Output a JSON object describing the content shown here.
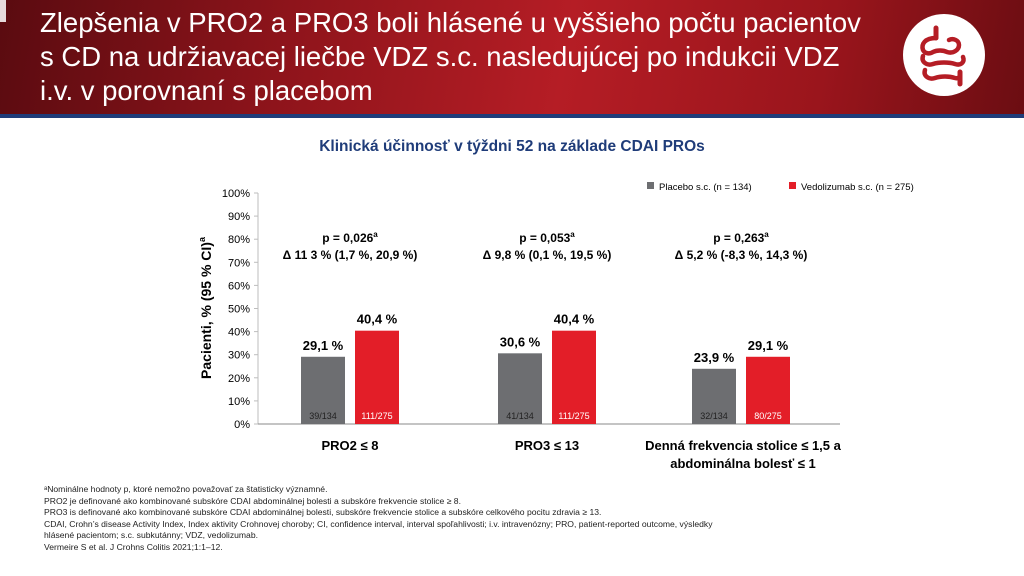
{
  "header": {
    "title": "Zlepšenia v PRO2 a PRO3 boli hlásené u vyššieho počtu pacientov s CD na udržiavacej liečbe VDZ s.c. nasledujúcej po indukcii VDZ i.v. v porovnaní s placebom",
    "logo_icon": "intestine-icon"
  },
  "colors": {
    "banner": "#9a151c",
    "placebo": "#6d6e71",
    "vedolizumab": "#e31e28",
    "navy": "#1f3c79"
  },
  "chart_data": {
    "type": "bar",
    "title": "Klinická účinnosť v týždni 52 na základe CDAI PROs",
    "ylabel": "Pacienti, % (95 % CI)",
    "ylabel_superscript": "a",
    "ylim": [
      0,
      100
    ],
    "yticks": [
      "0%",
      "10%",
      "20%",
      "30%",
      "40%",
      "50%",
      "60%",
      "70%",
      "80%",
      "90%",
      "100%"
    ],
    "legend": {
      "position": "top-right"
    },
    "categories": [
      {
        "label_lines": [
          "PRO2 ≤ 8"
        ]
      },
      {
        "label_lines": [
          "PRO3 ≤ 13"
        ]
      },
      {
        "label_lines": [
          "Denná frekvencia stolice  ≤ 1,5 a",
          "abdominálna bolesť ≤ 1"
        ]
      }
    ],
    "series": [
      {
        "name": "Placebo s.c. (n = 134)",
        "color": "#6d6e71",
        "values": [
          29.1,
          30.6,
          23.9
        ],
        "value_labels": [
          "29,1 %",
          "30,6 %",
          "23,9 %"
        ],
        "counts": [
          "39/134",
          "41/134",
          "32/134"
        ]
      },
      {
        "name": "Vedolizumab  s.c. (n = 275)",
        "color": "#e31e28",
        "values": [
          40.4,
          40.4,
          29.1
        ],
        "value_labels": [
          "40,4 %",
          "40,4 %",
          "29,1 %"
        ],
        "counts": [
          "111/275",
          "111/275",
          "80/275"
        ]
      }
    ],
    "annotations": [
      {
        "p_text": "p = 0,026",
        "p_sup": "a",
        "delta": "Δ 11 3 % (1,7 %, 20,9 %)"
      },
      {
        "p_text": "p = 0,053",
        "p_sup": "a",
        "delta": "Δ 9,8 % (0,1 %, 19,5 %)"
      },
      {
        "p_text": "p = 0,263",
        "p_sup": "a",
        "delta": "Δ 5,2 % (-8,3 %, 14,3 %)"
      }
    ]
  },
  "footnotes": [
    "ᵃNominálne hodnoty p, ktoré nemožno považovať za štatisticky významné.",
    "PRO2 je definované ako kombinované subskóre CDAI abdominálnej bolesti  a subskóre frekvencie stolice ≥ 8.",
    "PRO3 is definované ako kombinované subskóre CDAI abdominálnej bolesti, subskóre frekvencie stolice a subskóre celkového pocitu zdravia ≥ 13.",
    "CDAI, Crohn’s disease Activity Index, Index aktivity Crohnovej choroby; CI, confidence interval, interval spoľahlivosti; i.v. intravenózny; PRO, patient-reported outcome, výsledky",
    "hlásené pacientom; s.c. subkutánny; VDZ, vedolizumab.",
    "Vermeire S et al. J Crohns Colitis 2021;1:1–12."
  ]
}
